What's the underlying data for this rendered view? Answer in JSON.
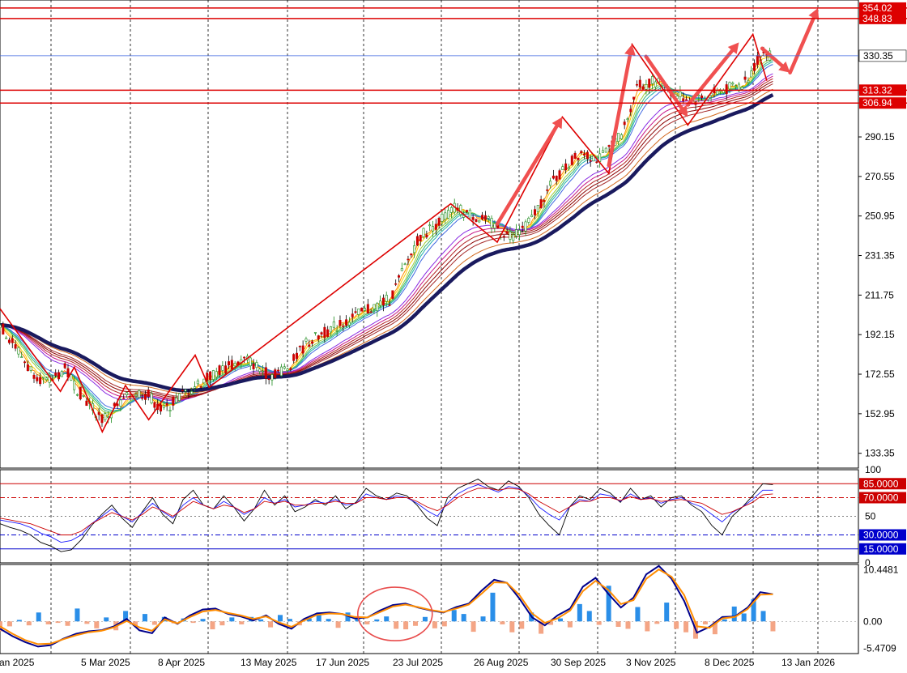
{
  "chart_data": [
    {
      "type": "candlestick",
      "pane": "price",
      "y_axis_ticks": [
        "290.15",
        "270.55",
        "250.95",
        "231.35",
        "211.75",
        "192.15",
        "172.55",
        "152.95",
        "133.35"
      ],
      "ylim": [
        126,
        358
      ],
      "x_axis_labels": [
        "an 2025",
        "5 Mar 2025",
        "8 Apr 2025",
        "13 May 2025",
        "17 Jun 2025",
        "23 Jul 2025",
        "26 Aug 2025",
        "30 Sep 2025",
        "3 Nov 2025",
        "8 Dec 2025",
        "13 Jan 2026"
      ],
      "close_path": [
        {
          "x": 0,
          "y": 197
        },
        {
          "x": 0.04,
          "y": 184
        },
        {
          "x": 0.06,
          "y": 176
        },
        {
          "x": 0.1,
          "y": 168
        },
        {
          "x": 0.14,
          "y": 175
        },
        {
          "x": 0.17,
          "y": 164
        },
        {
          "x": 0.22,
          "y": 150
        },
        {
          "x": 0.26,
          "y": 158
        },
        {
          "x": 0.29,
          "y": 164
        },
        {
          "x": 0.32,
          "y": 162
        },
        {
          "x": 0.35,
          "y": 154
        },
        {
          "x": 0.4,
          "y": 164
        },
        {
          "x": 0.47,
          "y": 174
        },
        {
          "x": 0.53,
          "y": 180
        },
        {
          "x": 0.58,
          "y": 172
        },
        {
          "x": 0.62,
          "y": 176
        },
        {
          "x": 0.66,
          "y": 188
        },
        {
          "x": 0.72,
          "y": 196
        },
        {
          "x": 0.78,
          "y": 203
        },
        {
          "x": 0.84,
          "y": 210
        },
        {
          "x": 0.9,
          "y": 240
        },
        {
          "x": 0.98,
          "y": 255
        },
        {
          "x": 1.05,
          "y": 248
        },
        {
          "x": 1.1,
          "y": 241
        },
        {
          "x": 1.14,
          "y": 248
        },
        {
          "x": 1.19,
          "y": 268
        },
        {
          "x": 1.25,
          "y": 283
        },
        {
          "x": 1.29,
          "y": 279
        },
        {
          "x": 1.34,
          "y": 292
        },
        {
          "x": 1.37,
          "y": 315
        },
        {
          "x": 1.41,
          "y": 318
        },
        {
          "x": 1.45,
          "y": 312
        },
        {
          "x": 1.49,
          "y": 308
        },
        {
          "x": 1.55,
          "y": 313
        },
        {
          "x": 1.6,
          "y": 316
        },
        {
          "x": 1.64,
          "y": 332
        },
        {
          "x": 1.67,
          "y": 330
        }
      ],
      "gmma_short_end": 318,
      "gmma_long_end": 316,
      "horizontal_lines": [
        {
          "value": 354.02,
          "label": "354.02"
        },
        {
          "value": 348.83,
          "label": "348.83"
        },
        {
          "value": 313.32,
          "label": "313.32"
        },
        {
          "value": 306.94,
          "label": "306.94"
        }
      ],
      "current_price": {
        "value": 330.35,
        "label": "330.35"
      },
      "zigzag": [
        {
          "x": 0,
          "y": 205
        },
        {
          "x": 0.13,
          "y": 164
        },
        {
          "x": 0.16,
          "y": 176
        },
        {
          "x": 0.22,
          "y": 144
        },
        {
          "x": 0.27,
          "y": 167
        },
        {
          "x": 0.32,
          "y": 150
        },
        {
          "x": 0.42,
          "y": 182
        },
        {
          "x": 0.45,
          "y": 166
        },
        {
          "x": 0.97,
          "y": 257
        },
        {
          "x": 1.07,
          "y": 238
        },
        {
          "x": 1.21,
          "y": 300
        },
        {
          "x": 1.31,
          "y": 272
        },
        {
          "x": 1.36,
          "y": 336
        },
        {
          "x": 1.48,
          "y": 296
        },
        {
          "x": 1.62,
          "y": 341
        },
        {
          "x": 1.65,
          "y": 318
        }
      ],
      "forecast_arrows": [
        {
          "x0": 1.07,
          "y0": 247,
          "x1": 1.21,
          "y1": 300
        },
        {
          "x0": 1.31,
          "y0": 276,
          "x1": 1.36,
          "y1": 336
        },
        {
          "x0": 1.39,
          "y0": 330,
          "x1": 1.48,
          "y1": 300
        },
        {
          "x0": 1.48,
          "y0": 306,
          "x1": 1.59,
          "y1": 337
        },
        {
          "x0": 1.64,
          "y0": 334,
          "x1": 1.7,
          "y1": 322
        },
        {
          "x0": 1.7,
          "y0": 322,
          "x1": 1.76,
          "y1": 354
        }
      ]
    },
    {
      "type": "line",
      "pane": "rsi",
      "ylim": [
        0,
        100
      ],
      "y_axis_ticks": [
        "100",
        "50",
        "0"
      ],
      "levels": [
        {
          "value": 85,
          "label": "85.0000",
          "color": "#cc0000"
        },
        {
          "value": 70,
          "label": "70.0000",
          "color": "#cc0000"
        },
        {
          "value": 30,
          "label": "30.0000",
          "color": "#0000cc"
        },
        {
          "value": 15,
          "label": "15.0000",
          "color": "#0000cc"
        }
      ],
      "series": [
        {
          "color": "#000000",
          "values": [
            42,
            38,
            35,
            30,
            22,
            18,
            12,
            14,
            25,
            40,
            52,
            62,
            48,
            38,
            55,
            70,
            52,
            42,
            68,
            78,
            62,
            58,
            72,
            60,
            45,
            58,
            78,
            62,
            72,
            55,
            60,
            68,
            62,
            72,
            58,
            65,
            80,
            72,
            68,
            75,
            72,
            62,
            48,
            40,
            70,
            80,
            85,
            90,
            82,
            78,
            88,
            82,
            70,
            52,
            40,
            30,
            60,
            72,
            68,
            80,
            75,
            65,
            80,
            68,
            72,
            60,
            70,
            72,
            62,
            55,
            40,
            30,
            50,
            60,
            72,
            85,
            84
          ]
        },
        {
          "color": "#1a1aff",
          "values": [
            46,
            44,
            42,
            38,
            32,
            28,
            22,
            24,
            30,
            42,
            50,
            58,
            50,
            44,
            54,
            64,
            55,
            48,
            62,
            70,
            62,
            58,
            66,
            60,
            52,
            58,
            70,
            64,
            68,
            60,
            62,
            66,
            64,
            68,
            62,
            64,
            74,
            70,
            68,
            72,
            70,
            64,
            56,
            50,
            64,
            74,
            80,
            84,
            80,
            76,
            82,
            80,
            72,
            60,
            52,
            46,
            60,
            68,
            66,
            74,
            72,
            66,
            74,
            68,
            70,
            64,
            68,
            70,
            64,
            60,
            52,
            44,
            54,
            60,
            68,
            78,
            78
          ]
        },
        {
          "color": "#cc0000",
          "values": [
            48,
            46,
            44,
            42,
            38,
            34,
            30,
            30,
            34,
            42,
            48,
            54,
            50,
            46,
            52,
            60,
            56,
            50,
            58,
            66,
            62,
            58,
            62,
            60,
            54,
            58,
            66,
            64,
            66,
            62,
            62,
            64,
            64,
            66,
            64,
            64,
            70,
            70,
            68,
            70,
            70,
            66,
            60,
            56,
            62,
            70,
            76,
            80,
            80,
            78,
            80,
            79,
            74,
            66,
            60,
            54,
            60,
            66,
            66,
            70,
            70,
            67,
            71,
            68,
            69,
            66,
            67,
            68,
            66,
            64,
            58,
            52,
            55,
            60,
            65,
            73,
            74
          ]
        }
      ]
    },
    {
      "type": "bar",
      "pane": "macd",
      "ylim": [
        -6.5,
        11.5
      ],
      "y_axis_ticks": [
        "10.4481",
        "0.00",
        "-5.4709"
      ],
      "histogram": [
        -2,
        -1,
        0.3,
        -0.8,
        1.8,
        -0.6,
        -0.3,
        -0.9,
        2.6,
        -0.5,
        -1.4,
        0.8,
        -1.8,
        2.1,
        -0.9,
        1.5,
        -0.7,
        0.9,
        -0.4,
        0.6,
        -0.3,
        0.5,
        -1.6,
        -0.8,
        0.8,
        -0.6,
        0.9,
        0.4,
        -1.2,
        1.3,
        0.5,
        -0.8,
        0.6,
        1.8,
        0.5,
        -1.3,
        1.8,
        0.6,
        -0.6,
        0.4,
        1,
        -1.5,
        -1.6,
        -0.9,
        0.9,
        -1.4,
        -1,
        2.3,
        1.5,
        -2.1,
        1,
        5.8,
        -0.6,
        -2.2,
        -1.5,
        1.8,
        -2.5,
        -0.7,
        0.6,
        -1.2,
        3.5,
        2.1,
        -0.7,
        7.2,
        -1.1,
        -1.5,
        2.9,
        -2,
        -0.5,
        3.8,
        -1.5,
        -2.2,
        -3.5,
        -0.6,
        -2.6,
        0.4,
        3,
        1.6,
        4.5,
        2.1,
        -2
      ],
      "macd_line": [
        -1.5,
        -3,
        -4.2,
        -5.1,
        -4.8,
        -3.5,
        -2.5,
        -2,
        -1.8,
        -1,
        0.5,
        -1.8,
        -2.4,
        0.8,
        -0.5,
        1.2,
        2.4,
        2.6,
        1.5,
        1,
        0.2,
        1.2,
        -0.5,
        -1.5,
        0.5,
        1.6,
        1.8,
        1.5,
        0.6,
        0.8,
        2.2,
        3.3,
        3.6,
        2.8,
        2.2,
        1.8,
        2.9,
        3.6,
        6.2,
        8.4,
        7.8,
        4.6,
        0.8,
        -0.8,
        1.2,
        2.6,
        7,
        8.8,
        5.6,
        2.8,
        4.8,
        9.5,
        11.2,
        8.6,
        4.1,
        -2.3,
        -1.1,
        0.9,
        1,
        2.8,
        5.9,
        5.5
      ],
      "signal_line": [
        -1,
        -2.5,
        -3.8,
        -4.6,
        -4.5,
        -3.6,
        -2.8,
        -2.2,
        -1.9,
        -1.2,
        0.1,
        -1.2,
        -1.9,
        0.4,
        -0.4,
        0.9,
        2,
        2.3,
        1.7,
        1.2,
        0.5,
        1,
        -0.2,
        -1.1,
        0.2,
        1.3,
        1.6,
        1.5,
        0.9,
        0.8,
        1.9,
        3,
        3.4,
        2.9,
        2.3,
        1.9,
        2.6,
        3.4,
        5.6,
        7.9,
        7.8,
        5.3,
        1.6,
        -0.3,
        0.6,
        2.2,
        6.1,
        8.2,
        6.4,
        3.5,
        4.3,
        8.6,
        10.5,
        9,
        5.3,
        -1,
        -1.3,
        0.6,
        0.9,
        2.5,
        5.4,
        5.5
      ],
      "highlight_circle": {
        "x": 0.85,
        "y": 1.5
      }
    }
  ]
}
